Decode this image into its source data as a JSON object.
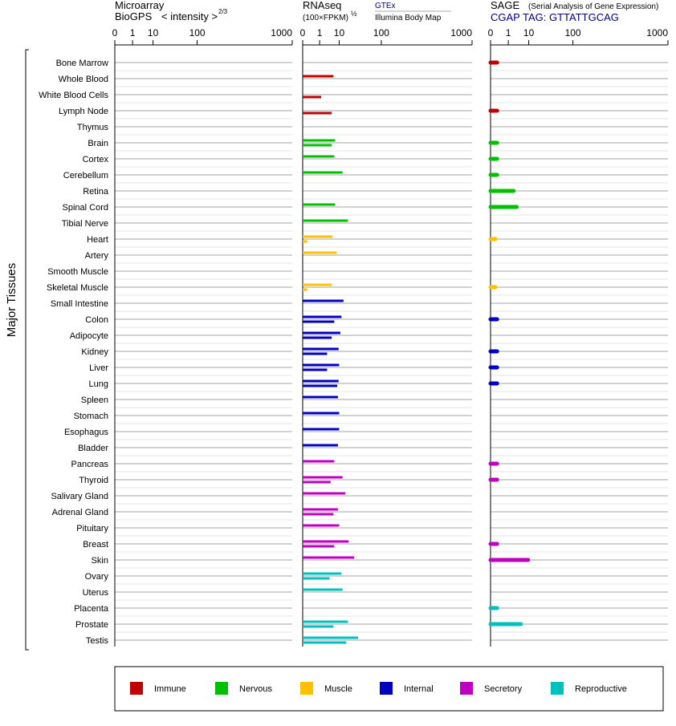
{
  "chart_data": {
    "type": "bar",
    "ylabel": "Major Tissues",
    "panels": [
      {
        "title_line1": "Microarray",
        "title_line2": "BioGPS",
        "subtitle": "< intensity >",
        "exponent": "2/3"
      },
      {
        "title_line1": "RNAseq",
        "title_line2": "(100×FPKM)",
        "exponent": "½",
        "source1": "GTEx",
        "source2": "Illumina Body Map"
      },
      {
        "title_line1": "SAGE",
        "subtitle": "(Serial Analysis of Gene Expression)",
        "tag": "CGAP TAG: GTTATTGCAG"
      }
    ],
    "x_ticks": [
      "0",
      "1",
      "10",
      "100",
      "1000"
    ],
    "xlim": [
      0,
      1000
    ],
    "categories_legend": [
      {
        "name": "Immune",
        "color": "#c00000"
      },
      {
        "name": "Nervous",
        "color": "#00c000"
      },
      {
        "name": "Muscle",
        "color": "#ffc000"
      },
      {
        "name": "Internal",
        "color": "#0000c0"
      },
      {
        "name": "Secretory",
        "color": "#c000c0"
      },
      {
        "name": "Reproductive",
        "color": "#00c0c0"
      }
    ],
    "tissues": [
      {
        "name": "Bone Marrow",
        "group": "Immune",
        "rnaseq_gtex": null,
        "rnaseq_ibm": null,
        "sage": 0.05
      },
      {
        "name": "Whole Blood",
        "group": "Immune",
        "rnaseq_gtex": 6.0,
        "rnaseq_ibm": null,
        "sage": null
      },
      {
        "name": "White Blood Cells",
        "group": "Immune",
        "rnaseq_gtex": null,
        "rnaseq_ibm": 1.3,
        "sage": null
      },
      {
        "name": "Lymph Node",
        "group": "Immune",
        "rnaseq_gtex": null,
        "rnaseq_ibm": 5.0,
        "sage": 0.05
      },
      {
        "name": "Thymus",
        "group": "Immune",
        "rnaseq_gtex": null,
        "rnaseq_ibm": null,
        "sage": null
      },
      {
        "name": "Brain",
        "group": "Nervous",
        "rnaseq_gtex": 7.0,
        "rnaseq_ibm": 5.0,
        "sage": 0.05
      },
      {
        "name": "Cortex",
        "group": "Nervous",
        "rnaseq_gtex": 6.5,
        "rnaseq_ibm": null,
        "sage": 0.05
      },
      {
        "name": "Cerebellum",
        "group": "Nervous",
        "rnaseq_gtex": 13.0,
        "rnaseq_ibm": null,
        "sage": 0.05
      },
      {
        "name": "Retina",
        "group": "Nervous",
        "rnaseq_gtex": null,
        "rnaseq_ibm": null,
        "sage": 2.2
      },
      {
        "name": "Spinal Cord",
        "group": "Nervous",
        "rnaseq_gtex": 7.0,
        "rnaseq_ibm": null,
        "sage": 3.2
      },
      {
        "name": "Tibial Nerve",
        "group": "Nervous",
        "rnaseq_gtex": 19.0,
        "rnaseq_ibm": null,
        "sage": null
      },
      {
        "name": "Heart",
        "group": "Muscle",
        "rnaseq_gtex": 5.5,
        "rnaseq_ibm": 0.02,
        "sage": 0.02
      },
      {
        "name": "Artery",
        "group": "Muscle",
        "rnaseq_gtex": 8.0,
        "rnaseq_ibm": null,
        "sage": null
      },
      {
        "name": "Smooth Muscle",
        "group": "Muscle",
        "rnaseq_gtex": null,
        "rnaseq_ibm": null,
        "sage": null
      },
      {
        "name": "Skeletal Muscle",
        "group": "Muscle",
        "rnaseq_gtex": 5.0,
        "rnaseq_ibm": 0.02,
        "sage": 0.02
      },
      {
        "name": "Small Intestine",
        "group": "Internal",
        "rnaseq_gtex": 14.0,
        "rnaseq_ibm": null,
        "sage": null
      },
      {
        "name": "Colon",
        "group": "Internal",
        "rnaseq_gtex": 12.0,
        "rnaseq_ibm": 6.5,
        "sage": 0.05
      },
      {
        "name": "Adipocyte",
        "group": "Internal",
        "rnaseq_gtex": 11.0,
        "rnaseq_ibm": 5.0,
        "sage": null
      },
      {
        "name": "Kidney",
        "group": "Internal",
        "rnaseq_gtex": 9.5,
        "rnaseq_ibm": 3.0,
        "sage": 0.05
      },
      {
        "name": "Liver",
        "group": "Internal",
        "rnaseq_gtex": 10.0,
        "rnaseq_ibm": 3.0,
        "sage": 0.05
      },
      {
        "name": "Lung",
        "group": "Internal",
        "rnaseq_gtex": 9.5,
        "rnaseq_ibm": 8.5,
        "sage": 0.05
      },
      {
        "name": "Spleen",
        "group": "Internal",
        "rnaseq_gtex": 9.0,
        "rnaseq_ibm": null,
        "sage": null
      },
      {
        "name": "Stomach",
        "group": "Internal",
        "rnaseq_gtex": 10.0,
        "rnaseq_ibm": null,
        "sage": null
      },
      {
        "name": "Esophagus",
        "group": "Internal",
        "rnaseq_gtex": 10.0,
        "rnaseq_ibm": null,
        "sage": null
      },
      {
        "name": "Bladder",
        "group": "Internal",
        "rnaseq_gtex": 9.0,
        "rnaseq_ibm": null,
        "sage": null
      },
      {
        "name": "Pancreas",
        "group": "Secretory",
        "rnaseq_gtex": 6.5,
        "rnaseq_ibm": null,
        "sage": 0.05
      },
      {
        "name": "Thyroid",
        "group": "Secretory",
        "rnaseq_gtex": 13.0,
        "rnaseq_ibm": 4.5,
        "sage": 0.05
      },
      {
        "name": "Salivary Gland",
        "group": "Secretory",
        "rnaseq_gtex": 16.0,
        "rnaseq_ibm": null,
        "sage": null
      },
      {
        "name": "Adrenal Gland",
        "group": "Secretory",
        "rnaseq_gtex": 9.0,
        "rnaseq_ibm": 6.0,
        "sage": null
      },
      {
        "name": "Pituitary",
        "group": "Secretory",
        "rnaseq_gtex": 10.0,
        "rnaseq_ibm": null,
        "sage": null
      },
      {
        "name": "Breast",
        "group": "Secretory",
        "rnaseq_gtex": 20.0,
        "rnaseq_ibm": 6.5,
        "sage": 0.05
      },
      {
        "name": "Skin",
        "group": "Secretory",
        "rnaseq_gtex": 28.0,
        "rnaseq_ibm": null,
        "sage": 9.5
      },
      {
        "name": "Ovary",
        "group": "Reproductive",
        "rnaseq_gtex": 12.0,
        "rnaseq_ibm": 4.0,
        "sage": null
      },
      {
        "name": "Uterus",
        "group": "Reproductive",
        "rnaseq_gtex": 13.0,
        "rnaseq_ibm": null,
        "sage": null
      },
      {
        "name": "Placenta",
        "group": "Reproductive",
        "rnaseq_gtex": null,
        "rnaseq_ibm": null,
        "sage": 0.05
      },
      {
        "name": "Prostate",
        "group": "Reproductive",
        "rnaseq_gtex": 19.0,
        "rnaseq_ibm": 6.0,
        "sage": 5.0
      },
      {
        "name": "Testis",
        "group": "Reproductive",
        "rnaseq_gtex": 35.0,
        "rnaseq_ibm": 17.0,
        "sage": null
      }
    ]
  }
}
